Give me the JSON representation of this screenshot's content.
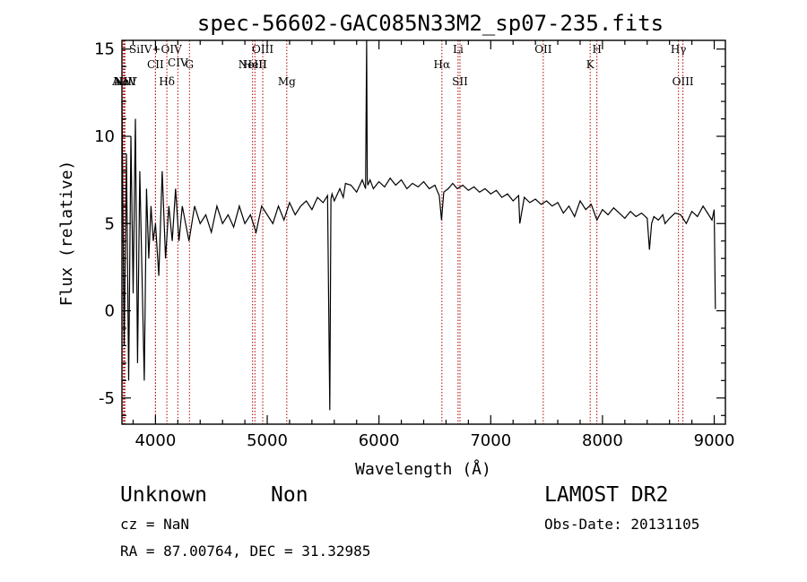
{
  "chart_data": {
    "type": "line",
    "title": "spec-56602-GAC085N33M2_sp07-235.fits",
    "xlabel": "Wavelength (Å)",
    "ylabel": "Flux (relative)",
    "xlim": [
      3700,
      9100
    ],
    "ylim": [
      -6.5,
      15.5
    ],
    "xticks": [
      4000,
      5000,
      6000,
      7000,
      8000,
      9000
    ],
    "yticks": [
      -5,
      0,
      5,
      10,
      15
    ],
    "grid": false,
    "series": [
      {
        "x": [
          3700,
          3720,
          3740,
          3760,
          3780,
          3800,
          3820,
          3840,
          3860,
          3880,
          3900,
          3920,
          3940,
          3960,
          3980,
          4000,
          4030,
          4060,
          4090,
          4120,
          4150,
          4180,
          4210,
          4240,
          4270,
          4300,
          4350,
          4400,
          4450,
          4500,
          4550,
          4600,
          4650,
          4700,
          4750,
          4800,
          4850,
          4900,
          4950,
          5000,
          5050,
          5100,
          5150,
          5200,
          5250,
          5300,
          5350,
          5400,
          5450,
          5500,
          5540,
          5560,
          5570,
          5580,
          5600,
          5650,
          5680,
          5700,
          5750,
          5800,
          5850,
          5880,
          5890,
          5895,
          5900,
          5920,
          5950,
          6000,
          6050,
          6100,
          6150,
          6200,
          6250,
          6300,
          6350,
          6400,
          6450,
          6500,
          6540,
          6560,
          6580,
          6620,
          6660,
          6700,
          6750,
          6800,
          6850,
          6900,
          6950,
          7000,
          7050,
          7100,
          7150,
          7200,
          7250,
          7260,
          7300,
          7350,
          7400,
          7450,
          7500,
          7550,
          7600,
          7650,
          7700,
          7750,
          7800,
          7850,
          7900,
          7950,
          8000,
          8050,
          8100,
          8150,
          8200,
          8250,
          8300,
          8350,
          8400,
          8420,
          8440,
          8460,
          8500,
          8540,
          8560,
          8600,
          8650,
          8700,
          8750,
          8800,
          8850,
          8900,
          8950,
          8980,
          9000,
          9010
        ],
        "y": [
          12,
          -2,
          9,
          -4,
          10,
          1,
          11,
          -3,
          8,
          2,
          -4,
          7,
          3,
          6,
          4,
          5,
          2,
          8,
          3,
          6,
          4,
          7,
          4,
          6,
          5,
          4,
          6,
          5,
          5.5,
          4.5,
          6,
          5,
          5.5,
          4.8,
          6,
          5,
          5.5,
          4.5,
          6,
          5.5,
          5,
          6,
          5.2,
          6.2,
          5.5,
          6,
          6.3,
          5.8,
          6.5,
          6.2,
          6.6,
          -5.7,
          6.4,
          6.7,
          6.3,
          7,
          6.5,
          7.3,
          7.2,
          6.8,
          7.5,
          7,
          15.5,
          7.5,
          7.2,
          7.5,
          7,
          7.4,
          7.1,
          7.6,
          7.2,
          7.5,
          7.0,
          7.3,
          7.1,
          7.4,
          7.0,
          7.2,
          6.6,
          5.2,
          6.8,
          7.0,
          7.3,
          7.0,
          7.2,
          6.9,
          7.1,
          6.8,
          7.0,
          6.7,
          6.9,
          6.5,
          6.7,
          6.3,
          6.6,
          5.0,
          6.5,
          6.2,
          6.4,
          6.1,
          6.3,
          6.0,
          6.2,
          5.6,
          6.0,
          5.4,
          6.3,
          5.8,
          6.1,
          5.2,
          5.8,
          5.5,
          5.9,
          5.6,
          5.3,
          5.7,
          5.4,
          5.6,
          5.3,
          3.5,
          5.0,
          5.4,
          5.2,
          5.5,
          5.0,
          5.3,
          5.6,
          5.5,
          5.0,
          5.7,
          5.4,
          6.0,
          5.5,
          5.2,
          5.8,
          0.1
        ]
      }
    ],
    "line_markers": [
      {
        "label": "NV",
        "wavelength": 3711,
        "row": 3
      },
      {
        "label": "AlIII",
        "wavelength": 3720,
        "row": 3
      },
      {
        "label": "NeV",
        "wavelength": 3727,
        "row": 3
      },
      {
        "label": "SiIV+OIV",
        "wavelength": 4000,
        "row": 1
      },
      {
        "label": "CII",
        "wavelength": 4000,
        "row": 2
      },
      {
        "label": "Hδ",
        "wavelength": 4102,
        "row": 3
      },
      {
        "label": "CIV",
        "wavelength": 4200,
        "row": 0
      },
      {
        "label": "G",
        "wavelength": 4304,
        "row": 2
      },
      {
        "label": "NeIII",
        "wavelength": 4869,
        "row": 2
      },
      {
        "label": "OIII",
        "wavelength": 4960,
        "row": 1
      },
      {
        "label": "HeII",
        "wavelength": 4890,
        "row": 2
      },
      {
        "label": "Mg",
        "wavelength": 5175,
        "row": 3
      },
      {
        "label": "Hα",
        "wavelength": 6563,
        "row": 2
      },
      {
        "label": "Li",
        "wavelength": 6708,
        "row": 1
      },
      {
        "label": "SII",
        "wavelength": 6725,
        "row": 3
      },
      {
        "label": "OII",
        "wavelength": 7470,
        "row": 1
      },
      {
        "label": "K",
        "wavelength": 7890,
        "row": 2
      },
      {
        "label": "H",
        "wavelength": 7950,
        "row": 1
      },
      {
        "label": "Hγ",
        "wavelength": 8680,
        "row": 1
      },
      {
        "label": "OIII",
        "wavelength": 8720,
        "row": 3
      }
    ],
    "marker_color": "#b00000"
  },
  "info": {
    "classification": "Unknown",
    "subclass": "Non",
    "survey": "LAMOST DR2",
    "redshift": "cz = NaN",
    "obs_date": "Obs-Date: 20131105",
    "coords": "RA =  87.00764, DEC =  31.32985"
  }
}
